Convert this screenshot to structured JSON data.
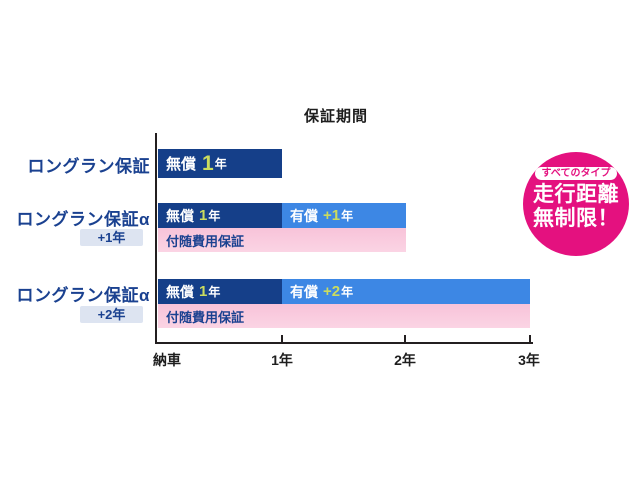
{
  "title": "保証期間",
  "labels": {
    "row1": "ロングラン保証",
    "row2": "ロングラン保証α",
    "row2_plus": "+1年",
    "row3": "ロングラン保証α",
    "row3_plus": "+2年"
  },
  "bars": {
    "row1_free": {
      "word": "無償",
      "num": "1",
      "suffix": "年"
    },
    "row2_free": {
      "word": "無償",
      "num": "1",
      "suffix": "年"
    },
    "row2_paid": {
      "word": "有償",
      "num": "+1",
      "suffix": "年"
    },
    "row2_incidental": "付随費用保証",
    "row3_free": {
      "word": "無償",
      "num": "1",
      "suffix": "年"
    },
    "row3_paid": {
      "word": "有償",
      "num": "+2",
      "suffix": "年"
    },
    "row3_incidental": "付随費用保証"
  },
  "axis": {
    "origin": "納車",
    "tick1": "1年",
    "tick2": "2年",
    "tick3": "3年"
  },
  "badge": {
    "pill": "すべてのタイプ",
    "line1": "走行距離",
    "line2": "無制限！"
  },
  "colors": {
    "navy_bar": "#153F89",
    "blue_bar": "#3D87E4",
    "pink_bar": "#F9C8DD",
    "lime_accent": "#CBDC5E",
    "label_navy": "#1A4190",
    "chip_bg": "#DDE4F1",
    "badge_magenta": "#E4117F",
    "axis_black": "#231F20"
  },
  "chart_data": {
    "type": "bar",
    "orientation": "horizontal",
    "title": "保証期間",
    "x_axis": {
      "origin_label": "納車",
      "tick_labels": [
        "1年",
        "2年",
        "3年"
      ],
      "range_years": [
        0,
        3
      ],
      "grid": false
    },
    "rows": [
      {
        "name": "ロングラン保証",
        "extension": null,
        "segments": [
          {
            "label": "無償 1年",
            "start_year": 0,
            "end_year": 1,
            "kind": "free"
          }
        ],
        "incidental_bar": null
      },
      {
        "name": "ロングラン保証α",
        "extension": "+1年",
        "segments": [
          {
            "label": "無償 1年",
            "start_year": 0,
            "end_year": 1,
            "kind": "free"
          },
          {
            "label": "有償 +1年",
            "start_year": 1,
            "end_year": 2,
            "kind": "paid"
          }
        ],
        "incidental_bar": {
          "label": "付随費用保証",
          "start_year": 0,
          "end_year": 2
        }
      },
      {
        "name": "ロングラン保証α",
        "extension": "+2年",
        "segments": [
          {
            "label": "無償 1年",
            "start_year": 0,
            "end_year": 1,
            "kind": "free"
          },
          {
            "label": "有償 +2年",
            "start_year": 1,
            "end_year": 3,
            "kind": "paid"
          }
        ],
        "incidental_bar": {
          "label": "付随費用保証",
          "start_year": 0,
          "end_year": 3
        }
      }
    ],
    "badge": {
      "tag": "すべてのタイプ",
      "text": "走行距離 無制限！"
    },
    "legend_position": "none"
  }
}
